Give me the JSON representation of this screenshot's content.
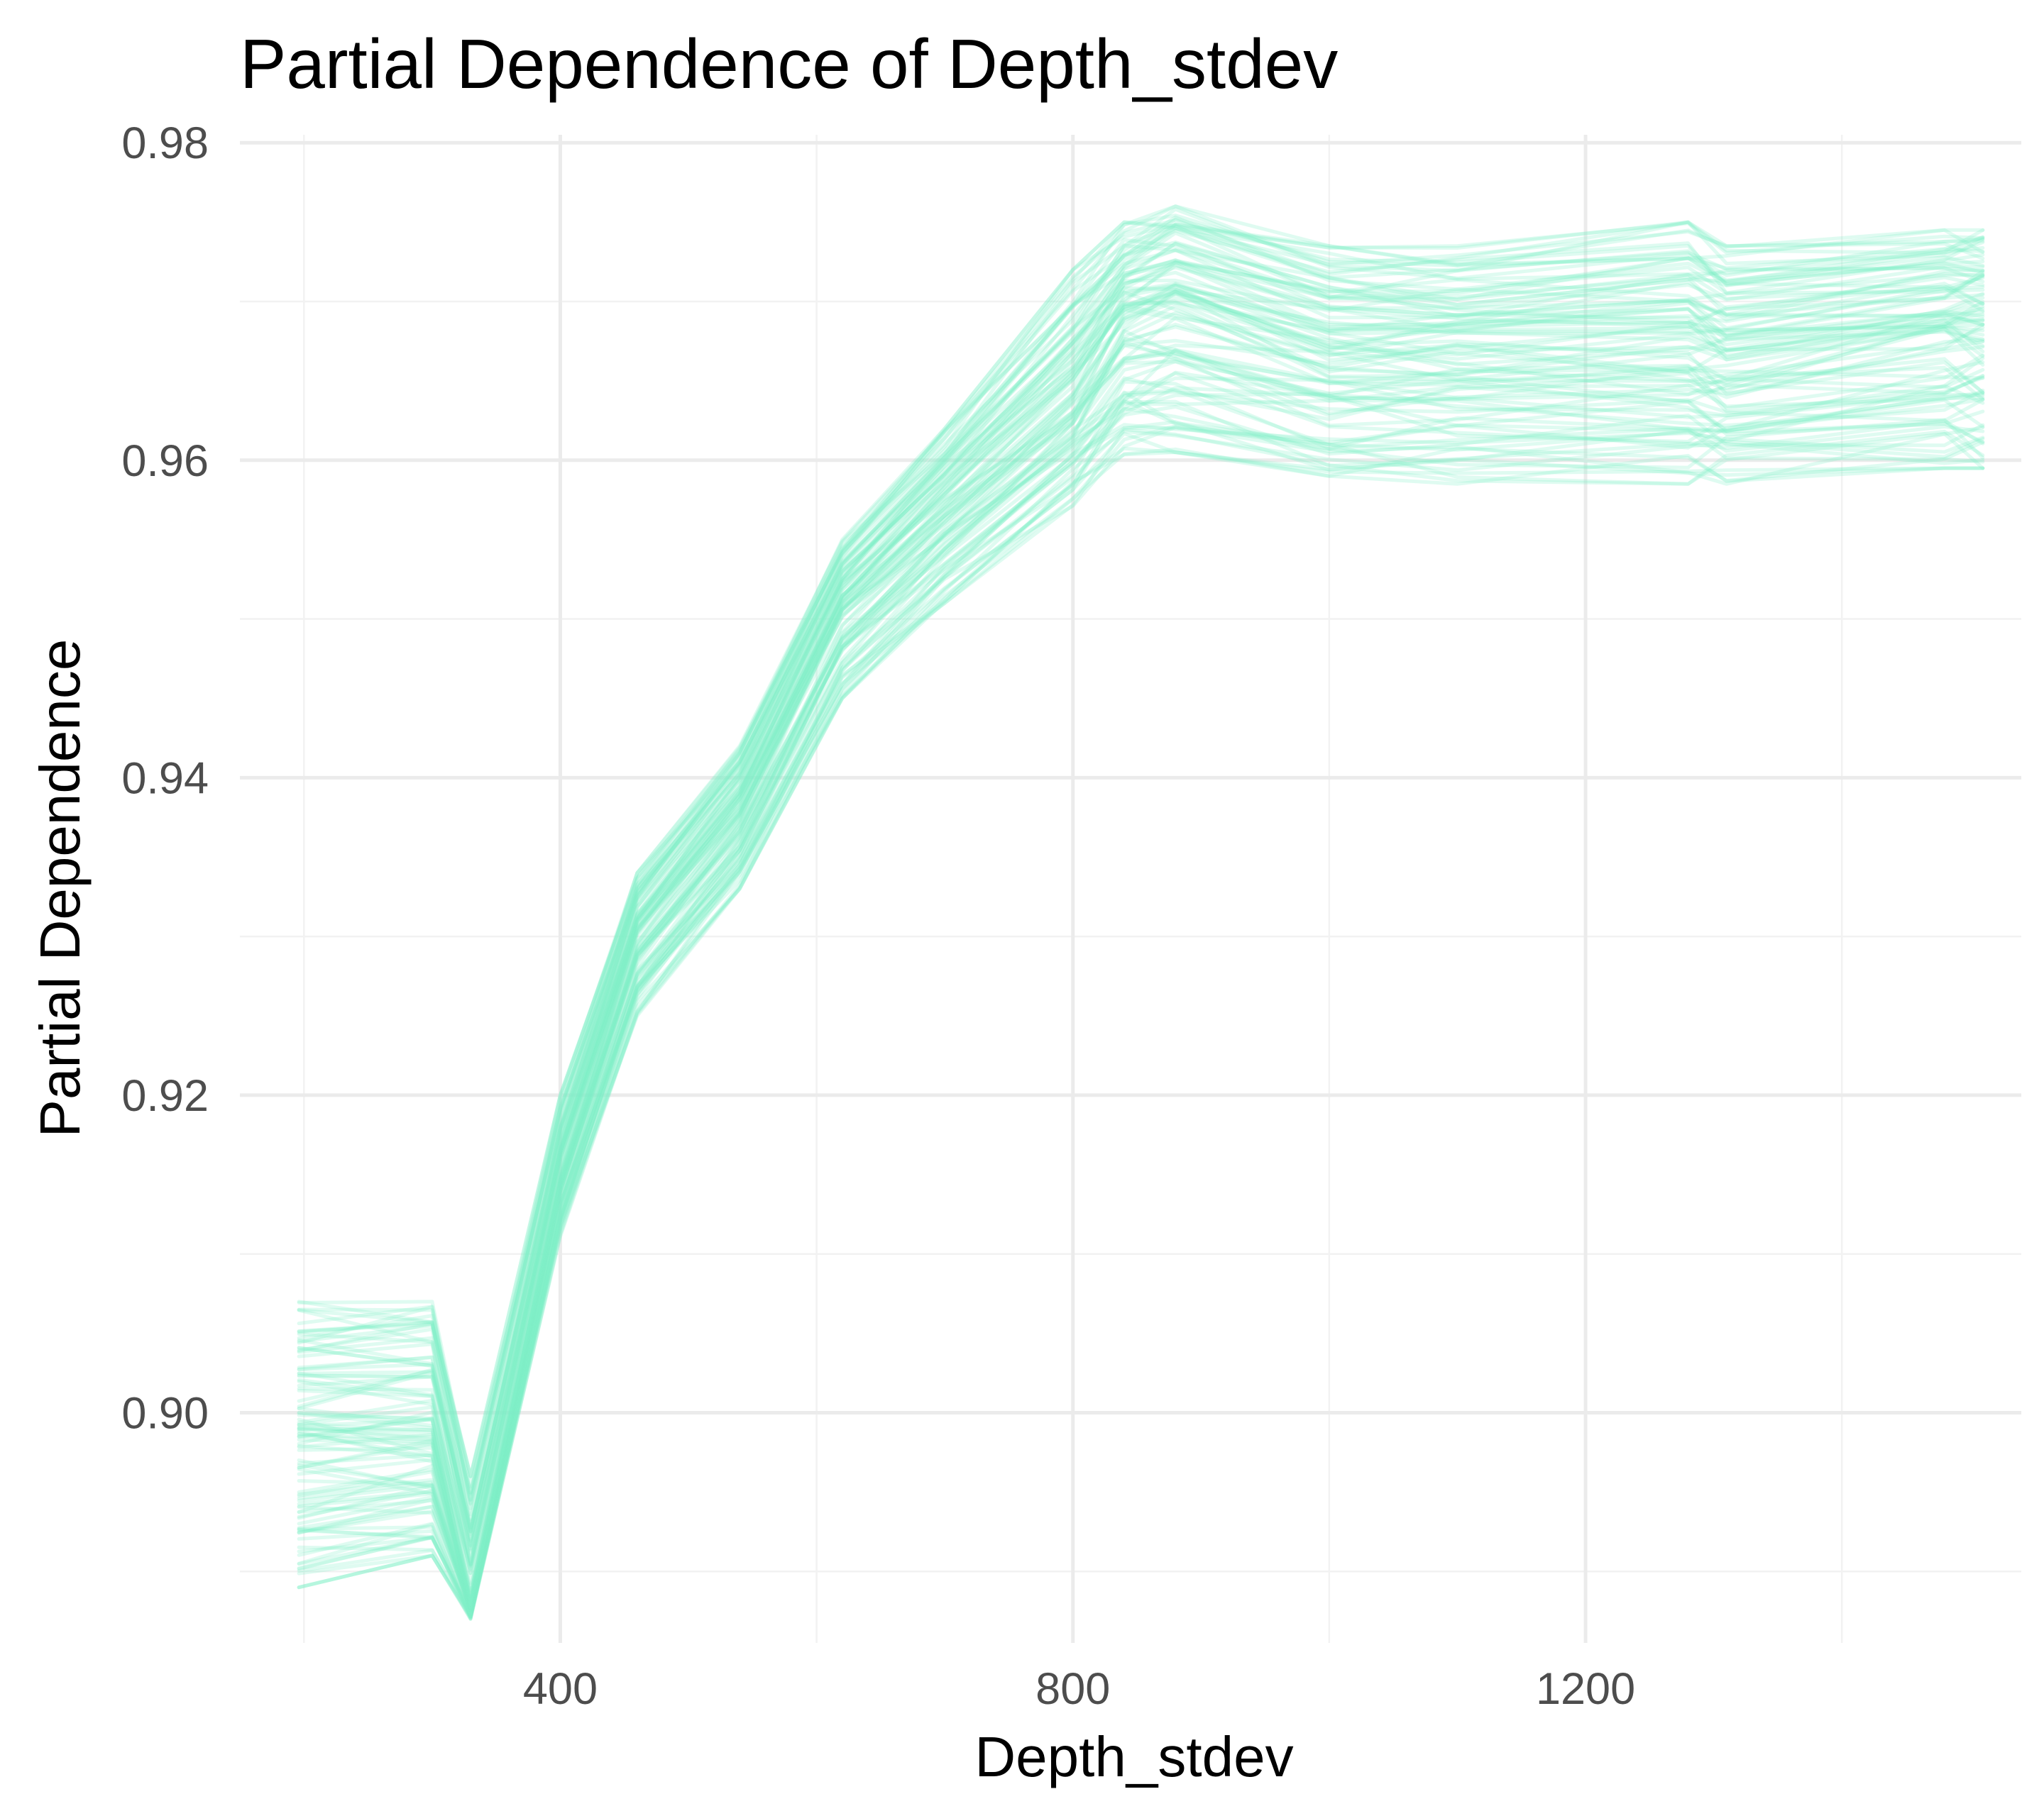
{
  "chart_data": {
    "type": "line",
    "title": "Partial Dependence of Depth_stdev",
    "xlabel": "Depth_stdev",
    "ylabel": "Partial Dependence",
    "xlim": [
      150,
      1540
    ],
    "ylim": [
      0.8855,
      0.9805
    ],
    "x_ticks": [
      400,
      800,
      1200
    ],
    "x_tick_labels": [
      "400",
      "800",
      "1200"
    ],
    "x_minor_grid": [
      200,
      600,
      1000,
      1400
    ],
    "y_ticks": [
      0.9,
      0.92,
      0.94,
      0.96,
      0.98
    ],
    "y_tick_labels": [
      "0.90",
      "0.92",
      "0.94",
      "0.96",
      "0.98"
    ],
    "y_minor_grid": [
      0.89,
      0.91,
      0.93,
      0.95,
      0.97
    ],
    "grid": true,
    "legend": "none",
    "line_color": "#7FEFC6",
    "line_opacity": 0.25,
    "series_count": 100,
    "x": [
      196,
      300,
      330,
      400,
      460,
      540,
      620,
      700,
      800,
      840,
      880,
      1000,
      1100,
      1280,
      1310,
      1480,
      1510
    ],
    "central_curve": [
      0.8985,
      0.8985,
      0.888,
      0.915,
      0.93,
      0.938,
      0.951,
      0.957,
      0.964,
      0.969,
      0.97,
      0.967,
      0.967,
      0.967,
      0.9665,
      0.9685,
      0.9685
    ],
    "band_min": [
      0.889,
      0.891,
      0.887,
      0.911,
      0.925,
      0.933,
      0.945,
      0.951,
      0.957,
      0.96,
      0.9605,
      0.959,
      0.9585,
      0.9585,
      0.9585,
      0.9595,
      0.9595
    ],
    "band_max": [
      0.907,
      0.907,
      0.896,
      0.92,
      0.934,
      0.942,
      0.955,
      0.962,
      0.972,
      0.975,
      0.976,
      0.9735,
      0.9735,
      0.975,
      0.9735,
      0.9745,
      0.9745
    ]
  }
}
